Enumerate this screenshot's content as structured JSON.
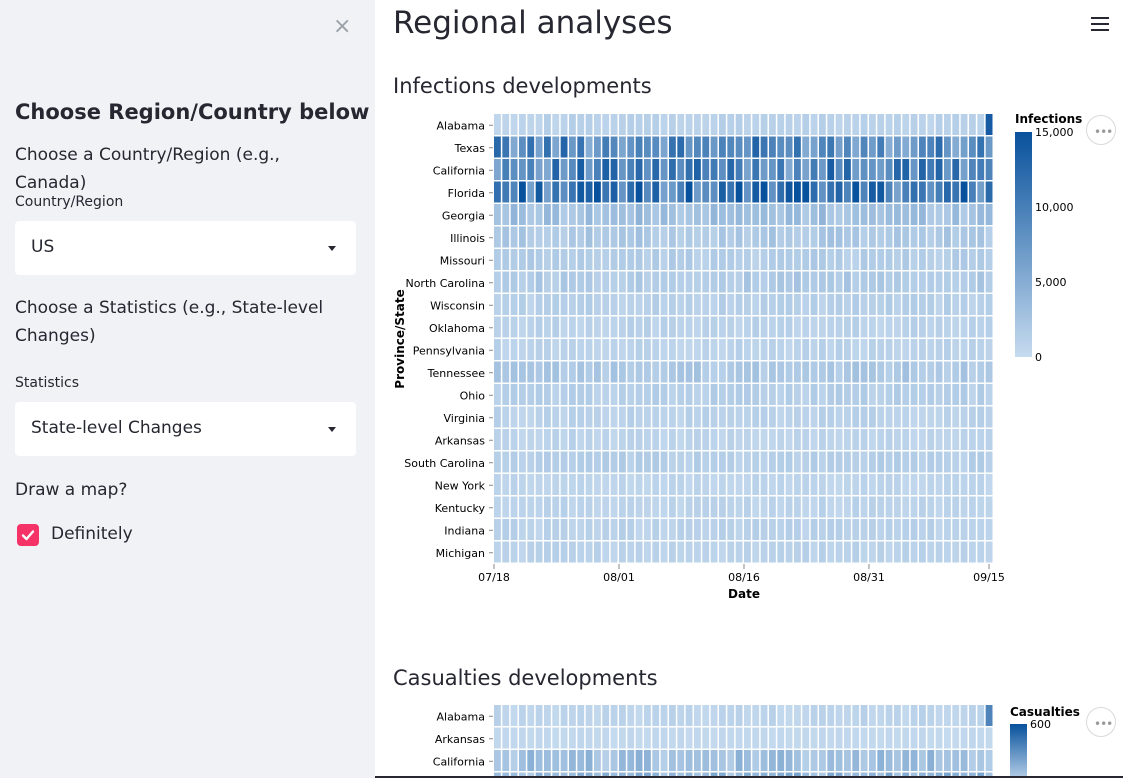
{
  "sidebar": {
    "close_label": "×",
    "title": "Choose Region/Country below",
    "country_prompt": "Choose a Country/Region (e.g., Canada)",
    "country_label": "Country/Region",
    "country_value": "US",
    "stats_prompt": "Choose a Statistics (e.g., State-level Changes)",
    "stats_label": "Statistics",
    "stats_value": "State-level Changes",
    "map_prompt": "Draw a map?",
    "map_checkbox_label": "Definitely",
    "map_checked": true
  },
  "main": {
    "title": "Regional analyses",
    "menu_icon": "hamburger-icon",
    "more_label": "•••",
    "accent_color": "#f63366"
  },
  "chart_data": [
    {
      "type": "heatmap",
      "title": "Infections developments",
      "xlabel": "Date",
      "ylabel": "Province/State",
      "x_ticks": [
        "07/18",
        "08/01",
        "08/16",
        "08/31",
        "09/15"
      ],
      "x_range": [
        "07/18",
        "09/15"
      ],
      "rows": [
        "Alabama",
        "Texas",
        "California",
        "Florida",
        "Georgia",
        "Illinois",
        "Missouri",
        "North Carolina",
        "Wisconsin",
        "Oklahoma",
        "Pennsylvania",
        "Tennessee",
        "Ohio",
        "Virginia",
        "Arkansas",
        "South Carolina",
        "New York",
        "Kentucky",
        "Indiana",
        "Michigan"
      ],
      "row_levels": [
        1000,
        9000,
        9500,
        11000,
        3000,
        2000,
        1500,
        1800,
        1200,
        1000,
        900,
        2000,
        1300,
        1000,
        800,
        1300,
        700,
        800,
        1000,
        900
      ],
      "legend_title": "Infections",
      "legend_ticks": [
        "15,000",
        "10,000",
        "5,000",
        "0"
      ],
      "legend_domain": [
        0,
        15000
      ],
      "color_range": [
        "#c6dbef",
        "#08519c"
      ],
      "grid": false
    },
    {
      "type": "heatmap",
      "title": "Casualties developments",
      "rows": [
        "Alabama",
        "Arkansas",
        "California"
      ],
      "row_levels": [
        30,
        15,
        120
      ],
      "legend_title": "Casualties",
      "legend_ticks": [
        "600"
      ],
      "legend_domain": [
        0,
        600
      ],
      "color_range": [
        "#c6dbef",
        "#08519c"
      ]
    }
  ]
}
